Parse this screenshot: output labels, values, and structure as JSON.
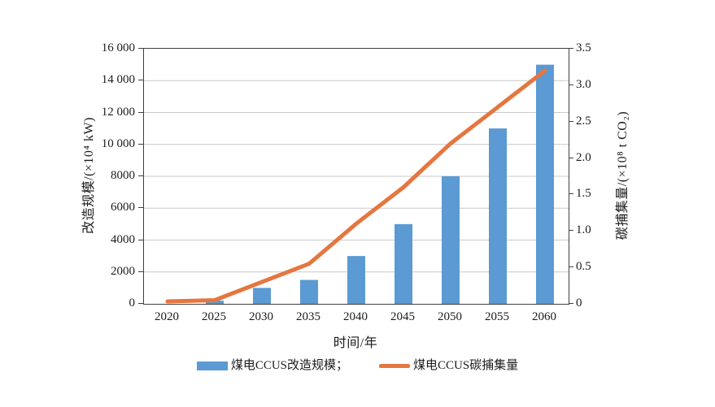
{
  "figure": {
    "background": "#ffffff",
    "frame_color": "#3f3f3f",
    "grid_color": "#c9c9c9",
    "text_color": "#1c1c1c"
  },
  "chart_data": {
    "type": "combo-bar-line",
    "categories": [
      "2020",
      "2025",
      "2030",
      "2035",
      "2040",
      "2045",
      "2050",
      "2055",
      "2060"
    ],
    "series": [
      {
        "name": "煤电CCUS改造规模",
        "type": "bar",
        "yaxis": "left",
        "color": "#5b9ad2",
        "values": [
          0,
          200,
          1000,
          1500,
          3000,
          5000,
          8000,
          11000,
          15000
        ]
      },
      {
        "name": "煤电CCUS碳捕集量",
        "type": "line",
        "yaxis": "right",
        "color": "#e5763f",
        "values": [
          0,
          0.05,
          0.3,
          0.55,
          1.1,
          1.6,
          2.2,
          2.7,
          3.2
        ]
      }
    ],
    "xlabel": "时间/年",
    "left_axis": {
      "label": "改造规模/(×10⁴ kW)",
      "min": 0,
      "max": 16000,
      "ticks": [
        "0",
        "2000",
        "4000",
        "6000",
        "8000",
        "10 000",
        "12 000",
        "14 000",
        "16 000"
      ]
    },
    "right_axis": {
      "label": "碳捕集量/(×10⁸ t CO₂)",
      "min": 0,
      "max": 3.5,
      "ticks": [
        "0",
        "0.5",
        "1.0",
        "1.5",
        "2.0",
        "2.5",
        "3.0",
        "3.5"
      ]
    },
    "grid": "horizontal",
    "legend_position": "bottom",
    "legend": [
      {
        "label": "煤电CCUS改造规模；",
        "swatch": "bar"
      },
      {
        "label": "煤电CCUS碳捕集量",
        "swatch": "line"
      }
    ]
  }
}
